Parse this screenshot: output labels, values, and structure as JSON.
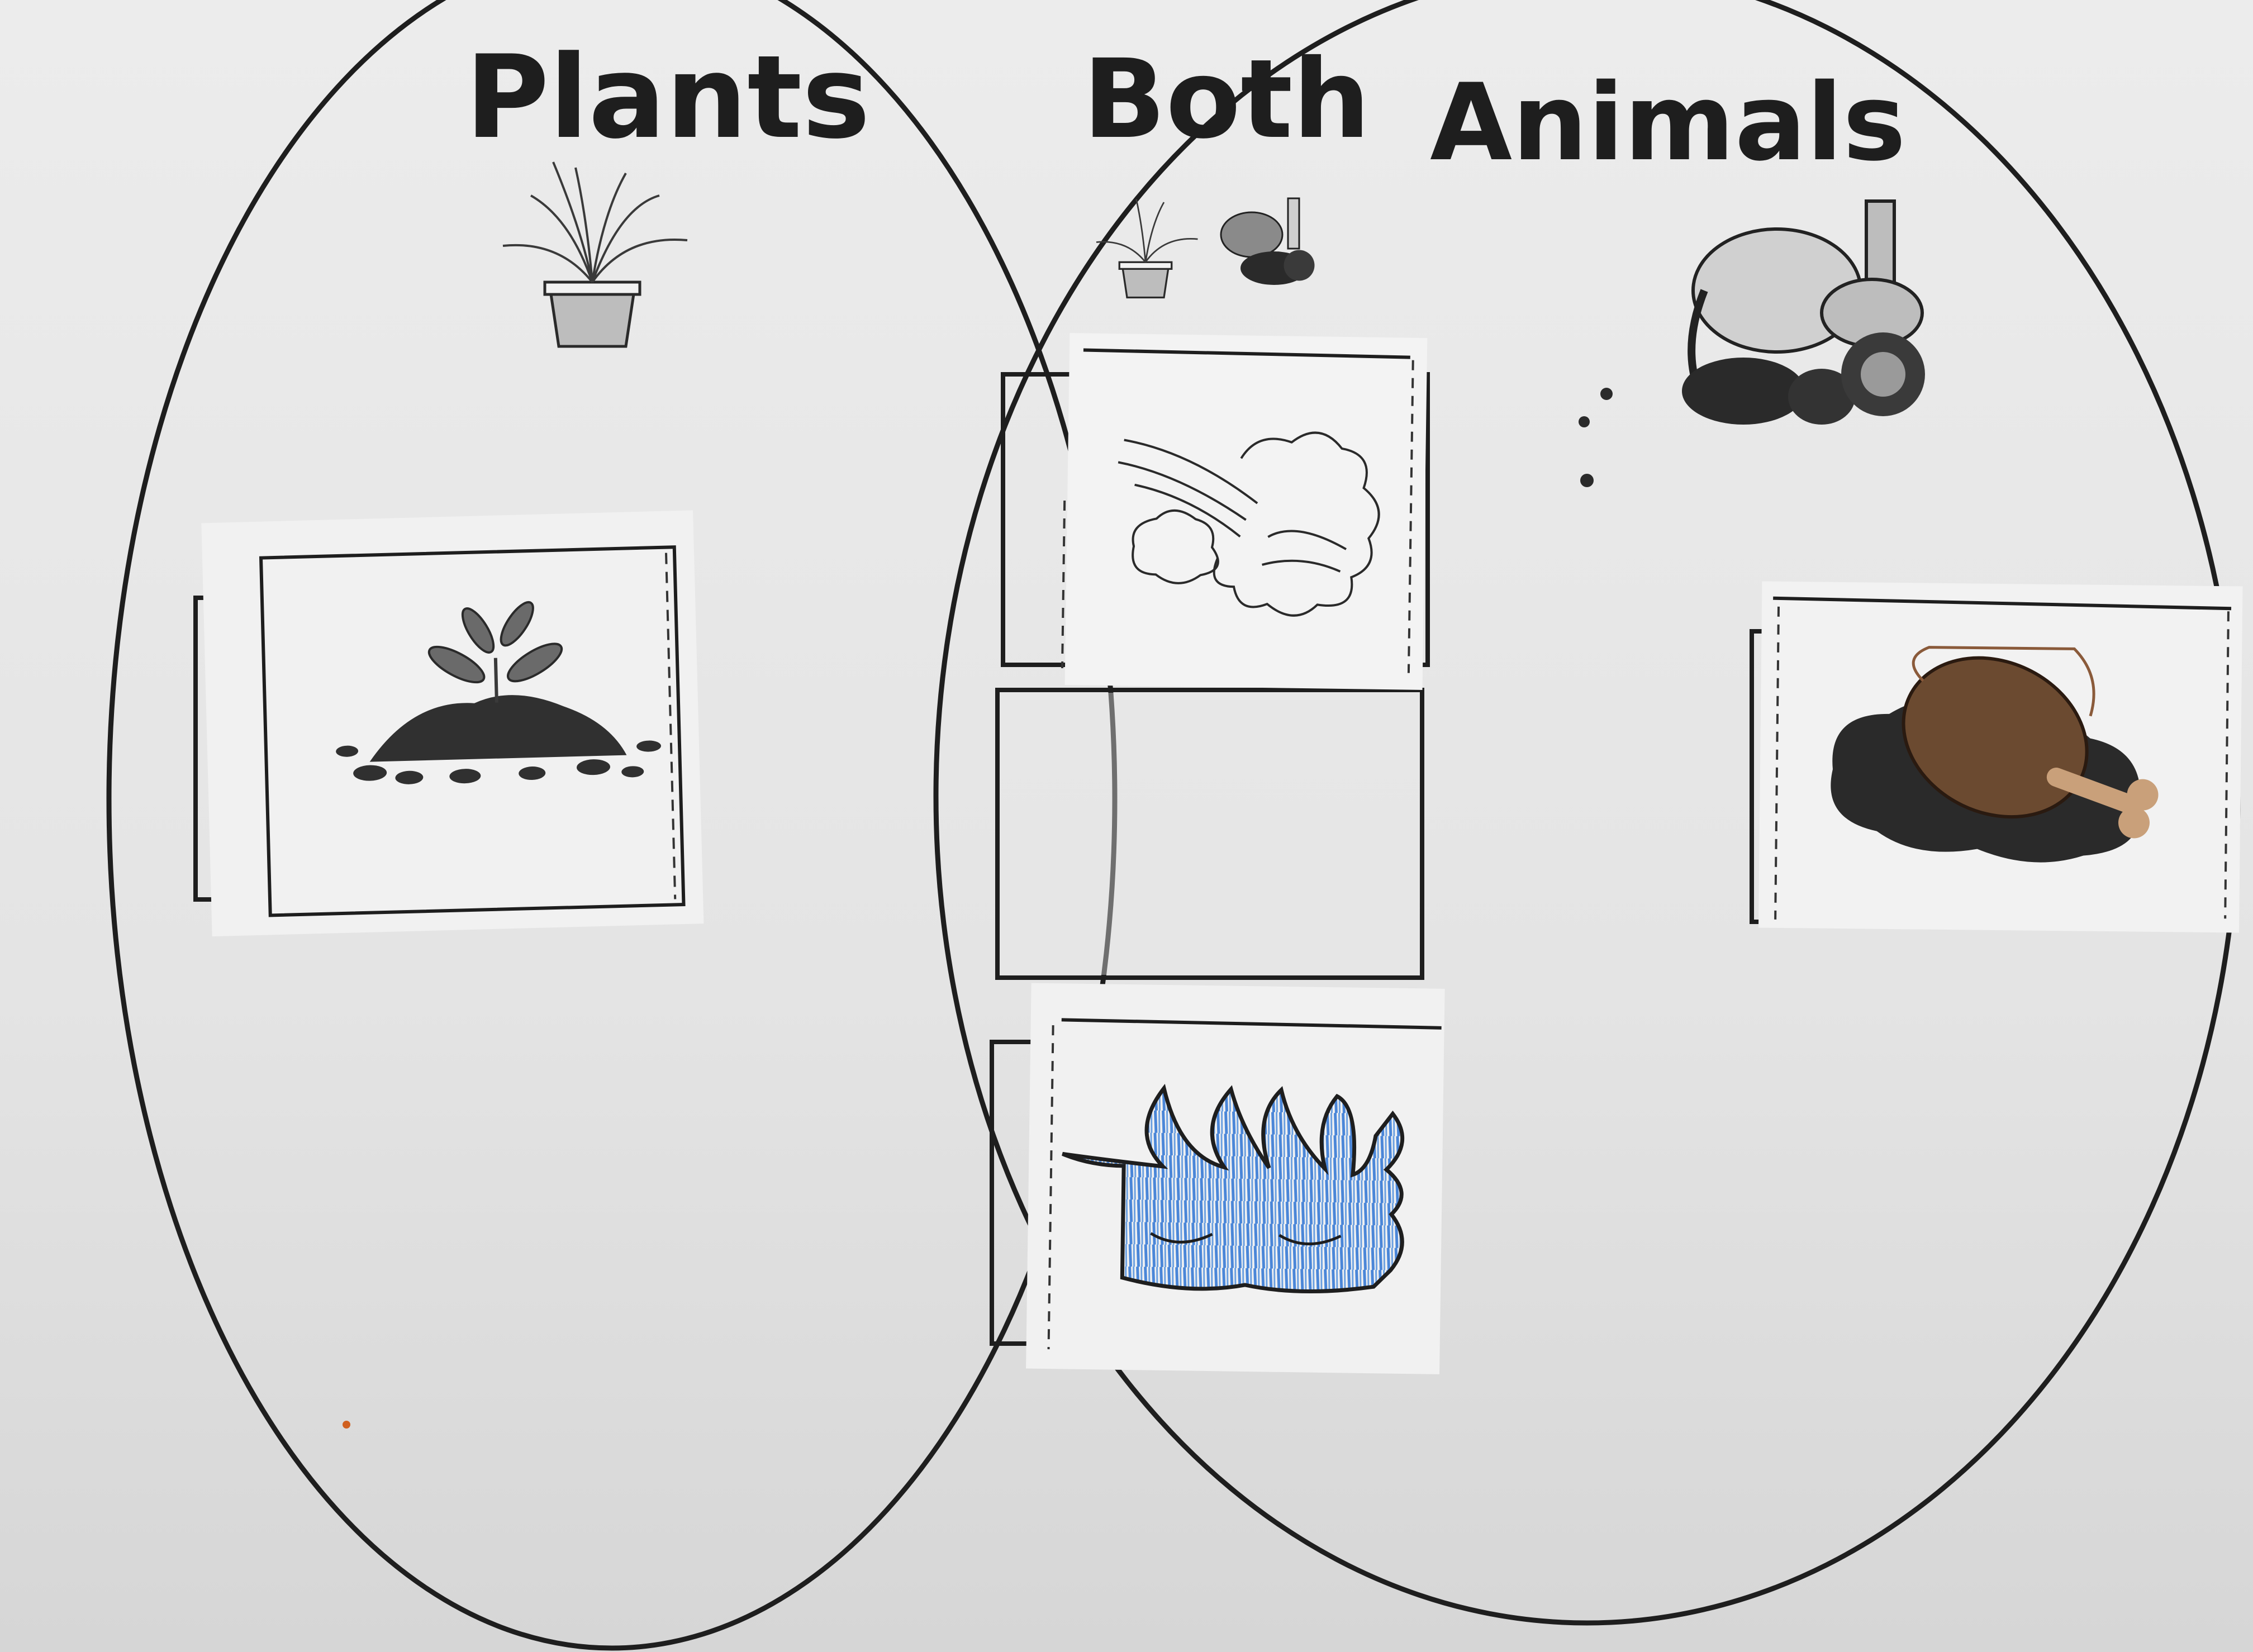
{
  "worksheet": {
    "type": "venn-diagram",
    "paper_color": "#e6e6e6",
    "ink_color": "#1e1e1e",
    "sets": [
      {
        "id": "left",
        "label": "Plants",
        "icon": "potted-plant-icon"
      },
      {
        "id": "both",
        "label": "Both",
        "icon": "plant-and-animals-icon"
      },
      {
        "id": "right",
        "label": "Animals",
        "icon": "animals-group-icon"
      }
    ],
    "cards": [
      {
        "region": "left",
        "picture": "soil-icon"
      },
      {
        "region": "both",
        "picture": "air-icon"
      },
      {
        "region": "both",
        "picture": "empty-slot"
      },
      {
        "region": "both",
        "picture": "water-icon",
        "crayon_color": "#4a86d8"
      },
      {
        "region": "right",
        "picture": "food-drumstick-icon",
        "crayon_color": "#6b4a30"
      }
    ]
  }
}
